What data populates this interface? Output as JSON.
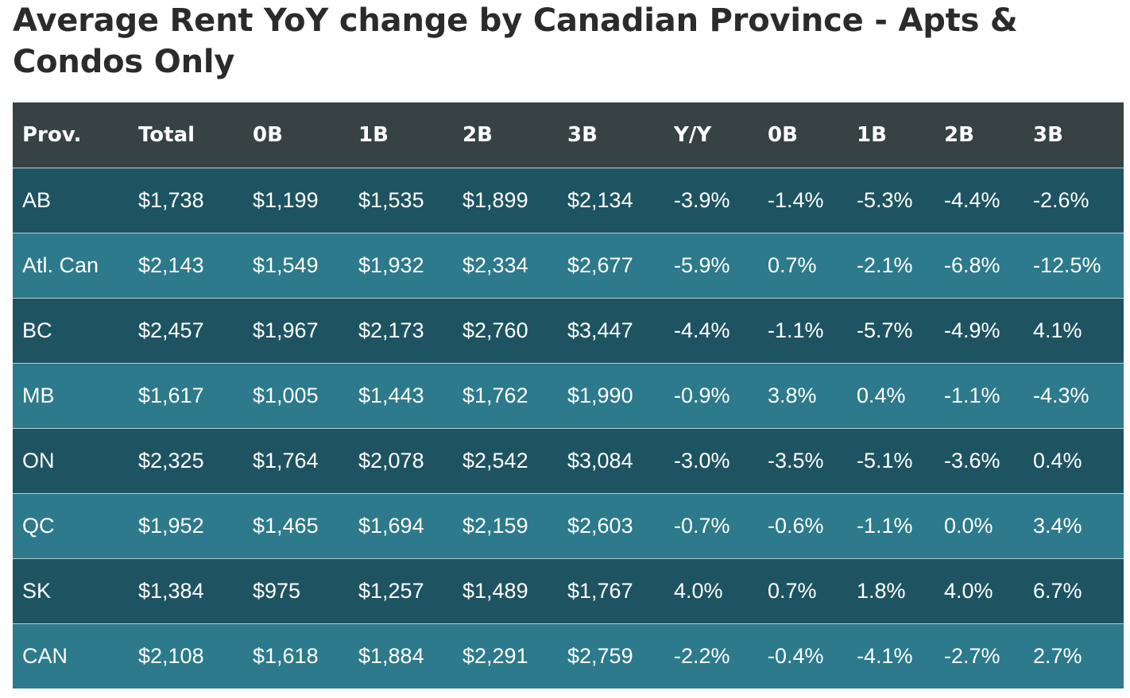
{
  "title": "Average Rent YoY change by Canadian Province - Apts & Condos Only",
  "colors": {
    "header_bg": "#364244",
    "row_dark": "#1e5461",
    "row_light": "#2c7a8c",
    "text": "#ffffff",
    "title_text": "#2b2b2b"
  },
  "chart_data": {
    "type": "table",
    "title": "Average Rent YoY change by Canadian Province - Apts & Condos Only",
    "columns": [
      "Prov.",
      "Total",
      "0B",
      "1B",
      "2B",
      "3B",
      "Y/Y",
      "0B",
      "1B",
      "2B",
      "3B"
    ],
    "rows": [
      [
        "AB",
        "$1,738",
        "$1,199",
        "$1,535",
        "$1,899",
        "$2,134",
        "-3.9%",
        "-1.4%",
        "-5.3%",
        "-4.4%",
        "-2.6%"
      ],
      [
        "Atl. Can",
        "$2,143",
        "$1,549",
        "$1,932",
        "$2,334",
        "$2,677",
        "-5.9%",
        "0.7%",
        "-2.1%",
        "-6.8%",
        "-12.5%"
      ],
      [
        "BC",
        "$2,457",
        "$1,967",
        "$2,173",
        "$2,760",
        "$3,447",
        "-4.4%",
        "-1.1%",
        "-5.7%",
        "-4.9%",
        "4.1%"
      ],
      [
        "MB",
        "$1,617",
        "$1,005",
        "$1,443",
        "$1,762",
        "$1,990",
        "-0.9%",
        "3.8%",
        "0.4%",
        "-1.1%",
        "-4.3%"
      ],
      [
        "ON",
        "$2,325",
        "$1,764",
        "$2,078",
        "$2,542",
        "$3,084",
        "-3.0%",
        "-3.5%",
        "-5.1%",
        "-3.6%",
        "0.4%"
      ],
      [
        "QC",
        "$1,952",
        "$1,465",
        "$1,694",
        "$2,159",
        "$2,603",
        "-0.7%",
        "-0.6%",
        "-1.1%",
        "0.0%",
        "3.4%"
      ],
      [
        "SK",
        "$1,384",
        "$975",
        "$1,257",
        "$1,489",
        "$1,767",
        "4.0%",
        "0.7%",
        "1.8%",
        "4.0%",
        "6.7%"
      ],
      [
        "CAN",
        "$2,108",
        "$1,618",
        "$1,884",
        "$2,291",
        "$2,759",
        "-2.2%",
        "-0.4%",
        "-4.1%",
        "-2.7%",
        "2.7%"
      ]
    ]
  }
}
